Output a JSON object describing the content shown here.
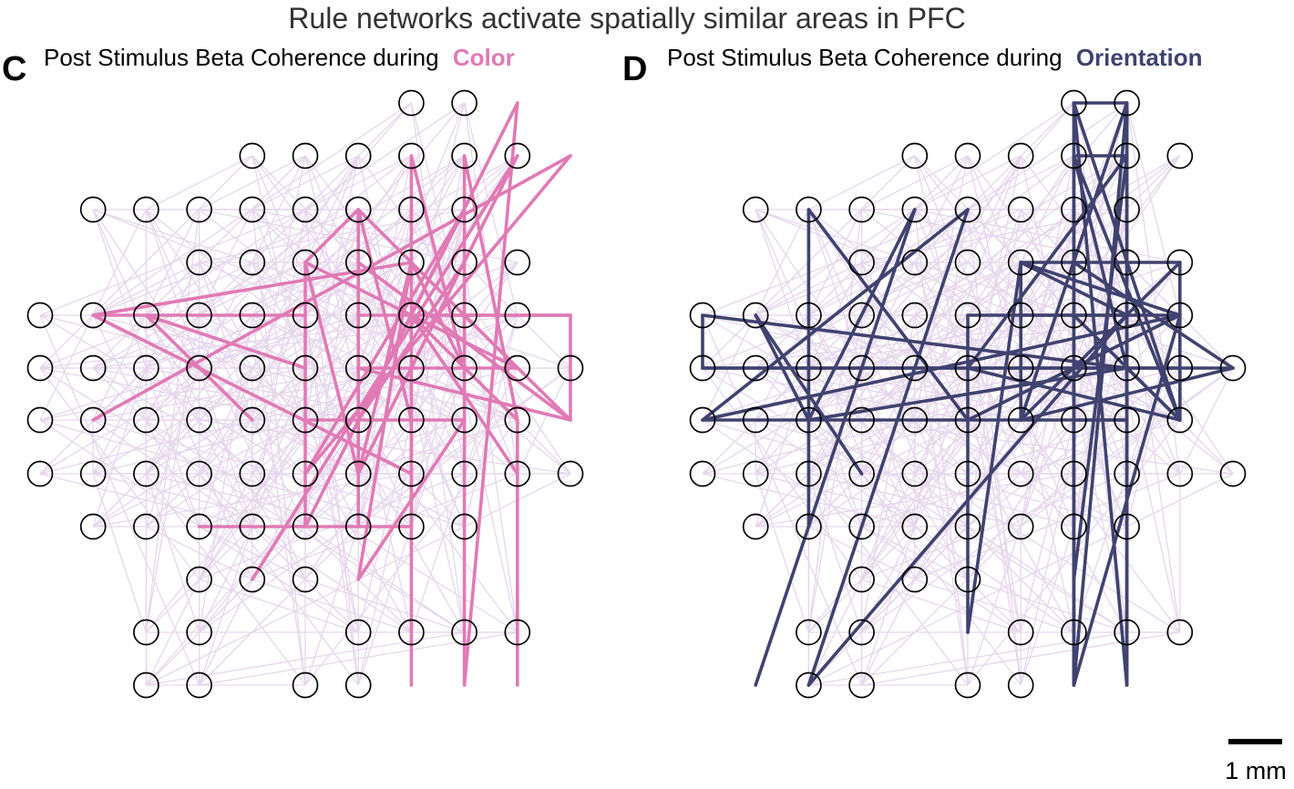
{
  "title": "Rule networks activate spatially similar areas in PFC",
  "colors": {
    "color_rule": "#e07ab5",
    "orientation_rule": "#40426f",
    "background_edges": "#e6d6ec",
    "node_stroke": "#000000"
  },
  "panels": [
    {
      "letter": "C",
      "title_prefix": "Post Stimulus Beta Coherence during",
      "rule": "Color",
      "rule_color": "#e07ab5",
      "background_edges": "faint lavender lines connecting most electrode pairs",
      "highlighted_edges": [
        [
          [
            1,
            4
          ],
          [
            7,
            3
          ]
        ],
        [
          [
            1,
            4
          ],
          [
            7,
            7
          ]
        ],
        [
          [
            1,
            4
          ],
          [
            5,
            4
          ]
        ],
        [
          [
            2,
            4
          ],
          [
            5,
            5
          ]
        ],
        [
          [
            2,
            4
          ],
          [
            4,
            6
          ]
        ],
        [
          [
            5,
            3
          ],
          [
            5,
            8
          ]
        ],
        [
          [
            5,
            3
          ],
          [
            6,
            2
          ]
        ],
        [
          [
            5,
            3
          ],
          [
            6,
            7
          ]
        ],
        [
          [
            6,
            2
          ],
          [
            9,
            5
          ]
        ],
        [
          [
            6,
            2
          ],
          [
            7,
            6
          ]
        ],
        [
          [
            7,
            1
          ],
          [
            7,
            11
          ]
        ],
        [
          [
            7,
            1
          ],
          [
            8,
            5
          ]
        ],
        [
          [
            7,
            3
          ],
          [
            8,
            5
          ]
        ],
        [
          [
            7,
            3
          ],
          [
            6,
            9
          ]
        ],
        [
          [
            7,
            3
          ],
          [
            6,
            7
          ]
        ],
        [
          [
            7,
            4
          ],
          [
            9,
            4
          ]
        ],
        [
          [
            7,
            4
          ],
          [
            9,
            7
          ]
        ],
        [
          [
            8,
            1
          ],
          [
            8,
            11
          ]
        ],
        [
          [
            8,
            1
          ],
          [
            9,
            6
          ]
        ],
        [
          [
            8,
            2
          ],
          [
            5,
            8
          ]
        ],
        [
          [
            8,
            2
          ],
          [
            5,
            7
          ]
        ],
        [
          [
            9,
            0
          ],
          [
            8,
            11
          ]
        ],
        [
          [
            9,
            0
          ],
          [
            6,
            6
          ]
        ],
        [
          [
            9,
            1
          ],
          [
            6,
            7
          ]
        ],
        [
          [
            9,
            1
          ],
          [
            4,
            9
          ]
        ],
        [
          [
            10,
            1
          ],
          [
            5,
            7
          ]
        ],
        [
          [
            10,
            1
          ],
          [
            1,
            6
          ]
        ],
        [
          [
            10,
            4
          ],
          [
            10,
            6
          ]
        ],
        [
          [
            10,
            4
          ],
          [
            9,
            4
          ]
        ],
        [
          [
            10,
            4
          ],
          [
            6,
            4
          ]
        ],
        [
          [
            10,
            6
          ],
          [
            6,
            5
          ]
        ],
        [
          [
            10,
            6
          ],
          [
            6,
            3
          ]
        ],
        [
          [
            10,
            6
          ],
          [
            8,
            4
          ]
        ],
        [
          [
            9,
            6
          ],
          [
            9,
            11
          ]
        ],
        [
          [
            9,
            5
          ],
          [
            6,
            5
          ]
        ],
        [
          [
            9,
            5
          ],
          [
            5,
            3
          ]
        ],
        [
          [
            5,
            6
          ],
          [
            6,
            6
          ]
        ],
        [
          [
            3,
            8
          ],
          [
            7,
            8
          ]
        ],
        [
          [
            7,
            8
          ],
          [
            7,
            6
          ]
        ],
        [
          [
            6,
            9
          ],
          [
            8,
            6
          ]
        ],
        [
          [
            6,
            6
          ],
          [
            8,
            6
          ]
        ],
        [
          [
            6,
            2
          ],
          [
            6,
            8
          ]
        ],
        [
          [
            8,
            3
          ],
          [
            6,
            6
          ]
        ],
        [
          [
            9,
            6
          ],
          [
            7,
            4
          ]
        ]
      ]
    },
    {
      "letter": "D",
      "title_prefix": "Post Stimulus Beta Coherence during",
      "rule": "Orientation",
      "rule_color": "#40426f",
      "background_edges": "faint lavender lines connecting most electrode pairs",
      "highlighted_edges": [
        [
          [
            7,
            0
          ],
          [
            8,
            0
          ]
        ],
        [
          [
            7,
            0
          ],
          [
            7,
            11
          ]
        ],
        [
          [
            8,
            0
          ],
          [
            8,
            11
          ]
        ],
        [
          [
            7,
            0
          ],
          [
            8,
            11
          ]
        ],
        [
          [
            8,
            0
          ],
          [
            7,
            11
          ]
        ],
        [
          [
            7,
            1
          ],
          [
            8,
            1
          ]
        ],
        [
          [
            7,
            1
          ],
          [
            7,
            11
          ]
        ],
        [
          [
            8,
            1
          ],
          [
            7,
            9
          ]
        ],
        [
          [
            7,
            1
          ],
          [
            9,
            6
          ]
        ],
        [
          [
            7,
            1
          ],
          [
            8,
            5
          ]
        ],
        [
          [
            6,
            3
          ],
          [
            9,
            3
          ]
        ],
        [
          [
            9,
            3
          ],
          [
            9,
            6
          ]
        ],
        [
          [
            6,
            3
          ],
          [
            6,
            6
          ]
        ],
        [
          [
            6,
            3
          ],
          [
            9,
            4
          ]
        ],
        [
          [
            6,
            3
          ],
          [
            5,
            10
          ]
        ],
        [
          [
            0,
            4
          ],
          [
            8,
            5
          ]
        ],
        [
          [
            0,
            4
          ],
          [
            0,
            5
          ]
        ],
        [
          [
            0,
            5
          ],
          [
            9,
            5
          ]
        ],
        [
          [
            0,
            5
          ],
          [
            10,
            5
          ]
        ],
        [
          [
            0,
            6
          ],
          [
            5,
            2
          ]
        ],
        [
          [
            1,
            4
          ],
          [
            2,
            6
          ]
        ],
        [
          [
            1,
            4
          ],
          [
            3,
            7
          ]
        ],
        [
          [
            2,
            2
          ],
          [
            5,
            6
          ]
        ],
        [
          [
            2,
            2
          ],
          [
            2,
            8
          ]
        ],
        [
          [
            4,
            2
          ],
          [
            1,
            11
          ]
        ],
        [
          [
            5,
            4
          ],
          [
            9,
            4
          ]
        ],
        [
          [
            5,
            4
          ],
          [
            5,
            10
          ]
        ],
        [
          [
            0,
            6
          ],
          [
            9,
            4
          ]
        ],
        [
          [
            0,
            6
          ],
          [
            8,
            6
          ]
        ],
        [
          [
            2,
            6
          ],
          [
            4,
            2
          ]
        ],
        [
          [
            2,
            6
          ],
          [
            8,
            5
          ]
        ],
        [
          [
            5,
            5
          ],
          [
            9,
            6
          ]
        ],
        [
          [
            5,
            5
          ],
          [
            8,
            1
          ]
        ],
        [
          [
            6,
            6
          ],
          [
            9,
            3
          ]
        ],
        [
          [
            6,
            6
          ],
          [
            8,
            0
          ]
        ],
        [
          [
            8,
            4
          ],
          [
            8,
            11
          ]
        ],
        [
          [
            8,
            4
          ],
          [
            6,
            3
          ]
        ],
        [
          [
            9,
            4
          ],
          [
            7,
            11
          ]
        ],
        [
          [
            9,
            4
          ],
          [
            5,
            6
          ]
        ],
        [
          [
            9,
            5
          ],
          [
            9,
            6
          ]
        ],
        [
          [
            9,
            6
          ],
          [
            8,
            5
          ]
        ],
        [
          [
            9,
            6
          ],
          [
            7,
            0
          ]
        ],
        [
          [
            7,
            6
          ],
          [
            8,
            6
          ]
        ],
        [
          [
            8,
            6
          ],
          [
            8,
            0
          ]
        ],
        [
          [
            10,
            5
          ],
          [
            7,
            3
          ]
        ],
        [
          [
            10,
            5
          ],
          [
            6,
            6
          ]
        ],
        [
          [
            2,
            11
          ],
          [
            5,
            2
          ]
        ],
        [
          [
            2,
            11
          ],
          [
            8,
            4
          ]
        ],
        [
          [
            7,
            4
          ],
          [
            9,
            6
          ]
        ],
        [
          [
            8,
            4
          ],
          [
            6,
            4
          ]
        ]
      ]
    }
  ],
  "scale_bar": {
    "label": "1 mm"
  }
}
